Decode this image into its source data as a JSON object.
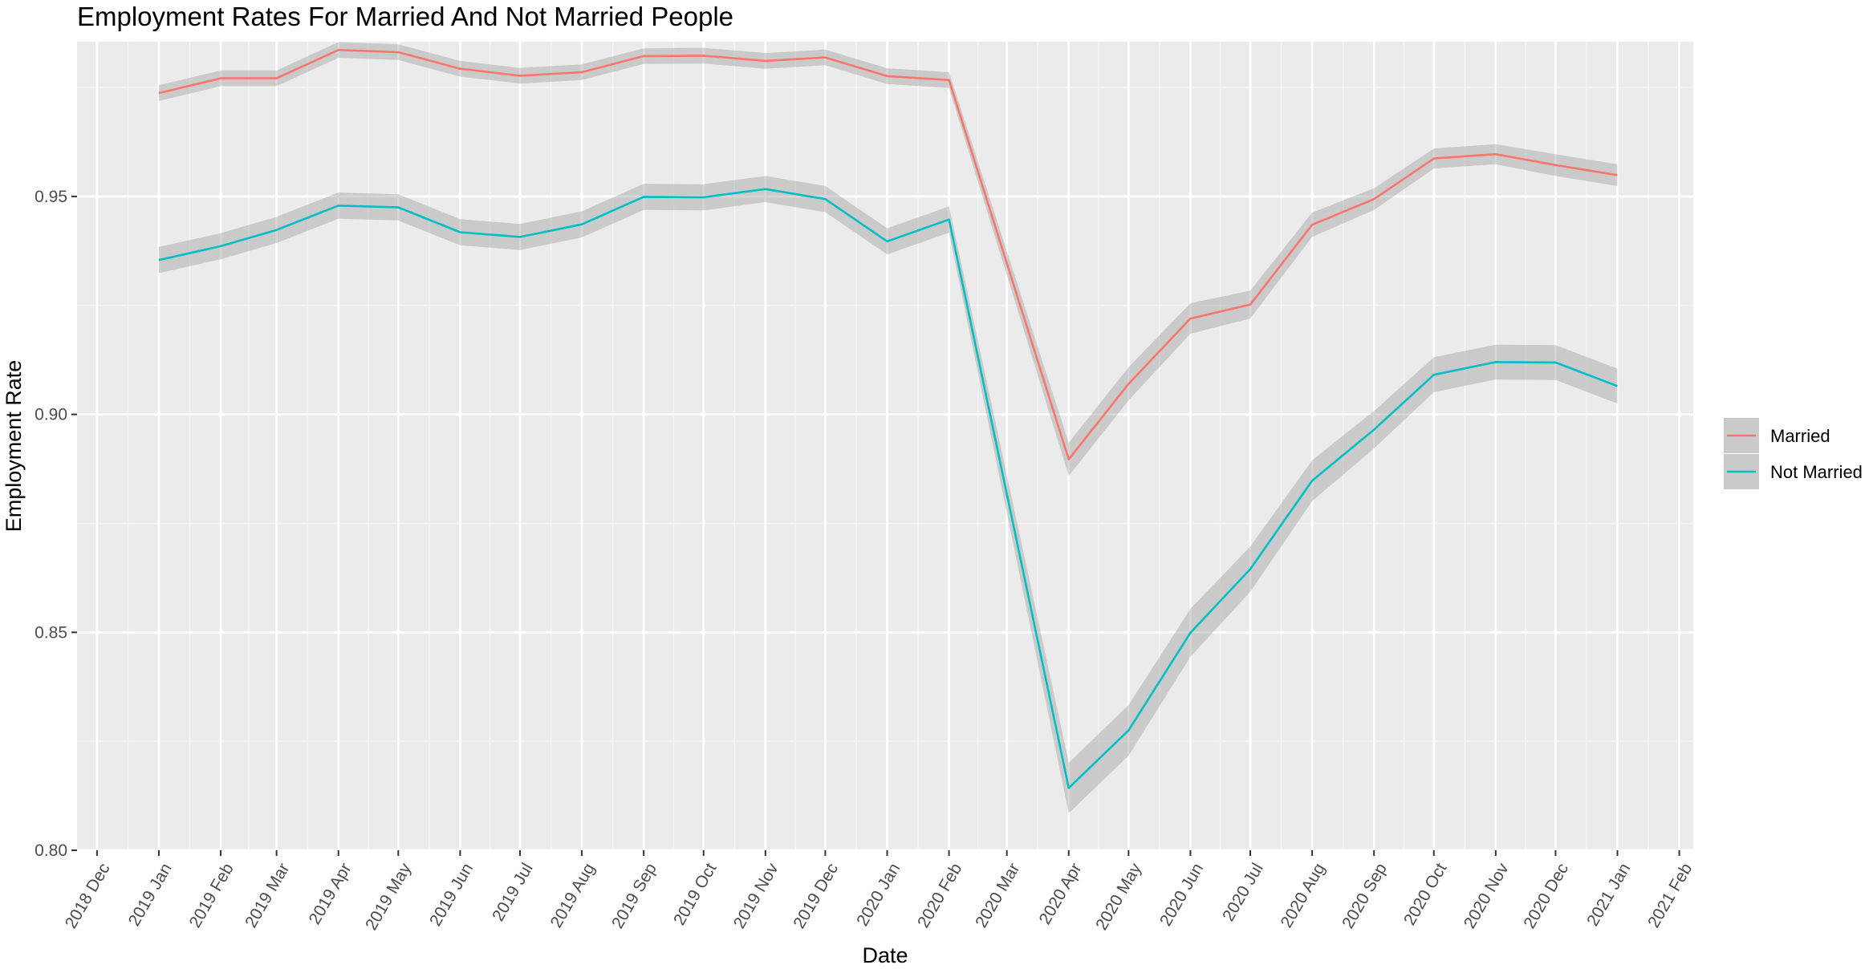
{
  "chart_data": {
    "type": "line",
    "title": "Employment Rates For Married And Not Married People",
    "xlabel": "Date",
    "ylabel": "Employment Rate",
    "grid": true,
    "legend_position": "right",
    "background": "#ebebeb",
    "x_ticks": [
      "2018 Dec",
      "2019 Jan",
      "2019 Feb",
      "2019 Mar",
      "2019 Apr",
      "2019 May",
      "2019 Jun",
      "2019 Jul",
      "2019 Aug",
      "2019 Sep",
      "2019 Oct",
      "2019 Nov",
      "2019 Dec",
      "2020 Jan",
      "2020 Feb",
      "2020 Mar",
      "2020 Apr",
      "2020 May",
      "2020 Jun",
      "2020 Jul",
      "2020 Aug",
      "2020 Sep",
      "2020 Oct",
      "2020 Nov",
      "2020 Dec",
      "2021 Jan",
      "2021 Feb"
    ],
    "xlim": [
      "2018-11-21",
      "2021-02-08"
    ],
    "ylim": [
      0.8,
      0.9855
    ],
    "y_ticks": [
      0.8,
      0.85,
      0.9,
      0.95
    ],
    "y_tick_labels": [
      "0.80",
      "0.85",
      "0.90",
      "0.95"
    ],
    "x": [
      "2019-01-01",
      "2019-02-01",
      "2019-03-01",
      "2019-04-01",
      "2019-05-01",
      "2019-06-01",
      "2019-07-01",
      "2019-08-01",
      "2019-09-01",
      "2019-10-01",
      "2019-11-01",
      "2019-12-01",
      "2020-01-01",
      "2020-02-01",
      "2020-04-01",
      "2020-05-01",
      "2020-06-01",
      "2020-07-01",
      "2020-08-01",
      "2020-09-01",
      "2020-10-01",
      "2020-11-01",
      "2020-12-01",
      "2021-01-01"
    ],
    "series": [
      {
        "name": "Married",
        "color": "#f8766d",
        "values": [
          0.9737,
          0.9771,
          0.9771,
          0.9836,
          0.9831,
          0.9793,
          0.9777,
          0.9785,
          0.9822,
          0.9823,
          0.9811,
          0.9819,
          0.9776,
          0.9767,
          0.8897,
          0.907,
          0.922,
          0.9252,
          0.9435,
          0.9494,
          0.9587,
          0.9597,
          0.9572,
          0.9549
        ],
        "ci_halfwidth": [
          0.0018,
          0.0018,
          0.0018,
          0.0018,
          0.0018,
          0.0018,
          0.0018,
          0.0018,
          0.0018,
          0.0018,
          0.0018,
          0.0018,
          0.0018,
          0.0018,
          0.0038,
          0.0038,
          0.0035,
          0.0032,
          0.0028,
          0.0025,
          0.0023,
          0.0023,
          0.0025,
          0.0025
        ]
      },
      {
        "name": "Not Married",
        "color": "#00bfc4",
        "values": [
          0.9354,
          0.9386,
          0.9423,
          0.9479,
          0.9475,
          0.9418,
          0.9407,
          0.9436,
          0.9499,
          0.9498,
          0.9517,
          0.9494,
          0.9397,
          0.9447,
          0.8143,
          0.8275,
          0.8499,
          0.8645,
          0.8848,
          0.8965,
          0.9091,
          0.912,
          0.9119,
          0.9065
        ],
        "ci_halfwidth": [
          0.003,
          0.003,
          0.003,
          0.003,
          0.003,
          0.003,
          0.003,
          0.003,
          0.003,
          0.003,
          0.003,
          0.003,
          0.003,
          0.003,
          0.0058,
          0.0058,
          0.0055,
          0.0052,
          0.0047,
          0.0043,
          0.004,
          0.004,
          0.004,
          0.004
        ]
      }
    ]
  }
}
